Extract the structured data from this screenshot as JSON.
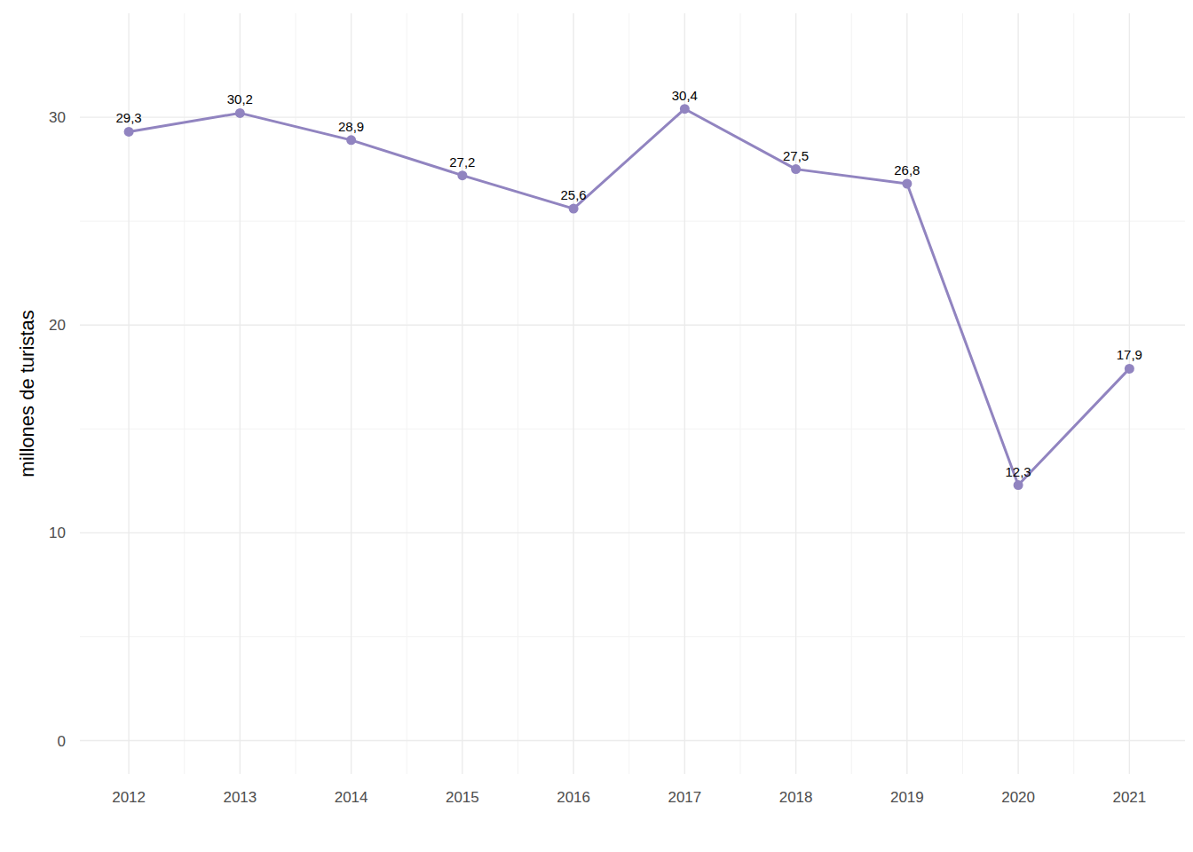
{
  "chart_data": {
    "type": "line",
    "y_label": "millones de turistas",
    "x": [
      2012,
      2013,
      2014,
      2015,
      2016,
      2017,
      2018,
      2019,
      2020,
      2021
    ],
    "values": [
      29.3,
      30.2,
      28.9,
      27.2,
      25.6,
      30.4,
      27.5,
      26.8,
      12.3,
      17.9
    ],
    "value_labels": [
      "29,3",
      "30,2",
      "28,9",
      "27,2",
      "25,6",
      "30,4",
      "27,5",
      "26,8",
      "12,3",
      "17,9"
    ],
    "color": "#9184c0",
    "marker": "circle",
    "line_style": "solid",
    "data_labels": true,
    "grid": true,
    "xlim": [
      2011.56,
      2021.5
    ],
    "xticks": [
      2012,
      2013,
      2014,
      2015,
      2016,
      2017,
      2018,
      2019,
      2020,
      2021
    ],
    "ylim": [
      -1.6,
      35
    ],
    "yticks": [
      0,
      10,
      20,
      30
    ]
  }
}
